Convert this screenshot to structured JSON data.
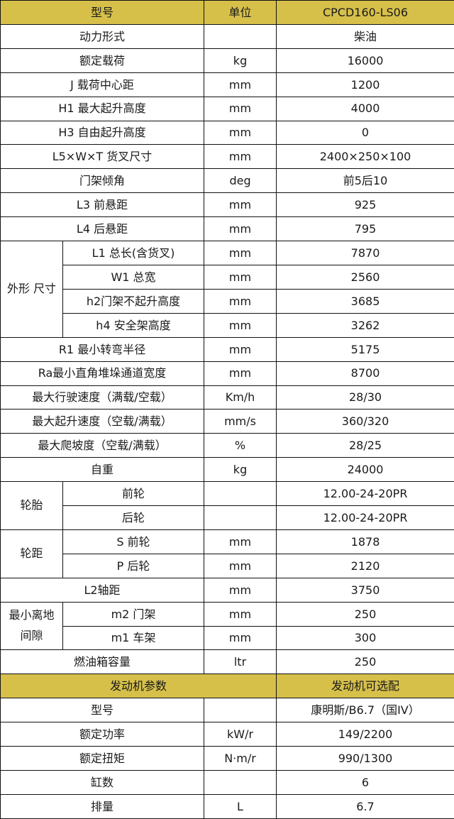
{
  "header": {
    "model_label": "型号",
    "unit_label": "单位",
    "model_value": "CPCD160-LS06"
  },
  "specs": [
    {
      "label": "动力形式",
      "unit": "",
      "value": "柴油"
    },
    {
      "label": "额定载荷",
      "unit": "kg",
      "value": "16000"
    },
    {
      "label": "J 载荷中心距",
      "unit": "mm",
      "value": "1200"
    },
    {
      "label": "H1 最大起升高度",
      "unit": "mm",
      "value": "4000"
    },
    {
      "label": "H3 自由起升高度",
      "unit": "mm",
      "value": "0"
    },
    {
      "label": "L5×W×T 货叉尺寸",
      "unit": "mm",
      "value": "2400×250×100"
    },
    {
      "label": "门架倾角",
      "unit": "deg",
      "value": "前5后10"
    },
    {
      "label": "L3 前悬距",
      "unit": "mm",
      "value": "925"
    },
    {
      "label": "L4 后悬距",
      "unit": "mm",
      "value": "795"
    },
    {
      "group": "外形 尺寸",
      "items": [
        {
          "label": "L1 总长(含货叉)",
          "unit": "mm",
          "value": "7870"
        },
        {
          "label": "W1 总宽",
          "unit": "mm",
          "value": "2560"
        },
        {
          "label": "h2门架不起升高度",
          "unit": "mm",
          "value": "3685"
        },
        {
          "label": "h4 安全架高度",
          "unit": "mm",
          "value": "3262"
        }
      ]
    },
    {
      "label": "R1 最小转弯半径",
      "unit": "mm",
      "value": "5175"
    },
    {
      "label": "Ra最小直角堆垛通道宽度",
      "unit": "mm",
      "value": "8700"
    },
    {
      "label": "最大行驶速度（满载/空载）",
      "unit": "Km/h",
      "value": "28/30"
    },
    {
      "label": "最大起升速度（空载/满载）",
      "unit": "mm/s",
      "value": "360/320"
    },
    {
      "label": "最大爬坡度（空载/满载）",
      "unit": "%",
      "value": "28/25"
    },
    {
      "label": "自重",
      "unit": "kg",
      "value": "24000"
    },
    {
      "group": "轮胎",
      "items": [
        {
          "label": "前轮",
          "unit": "",
          "value": "12.00-24-20PR"
        },
        {
          "label": "后轮",
          "unit": "",
          "value": "12.00-24-20PR"
        }
      ]
    },
    {
      "group": "轮距",
      "items": [
        {
          "label": "S 前轮",
          "unit": "mm",
          "value": "1878"
        },
        {
          "label": "P 后轮",
          "unit": "mm",
          "value": "2120"
        }
      ]
    },
    {
      "label": "L2轴距",
      "unit": "mm",
      "value": "3750"
    },
    {
      "group": "最小离地\n间隙",
      "items": [
        {
          "label": "m2 门架",
          "unit": "mm",
          "value": "250"
        },
        {
          "label": "m1 车架",
          "unit": "mm",
          "value": "300"
        }
      ]
    },
    {
      "label": "燃油箱容量",
      "unit": "ltr",
      "value": "250"
    }
  ],
  "engine_header": {
    "label": "发动机参数",
    "value": "发动机可选配"
  },
  "engine": [
    {
      "label": "型号",
      "unit": "",
      "value": "康明斯/B6.7（国IV）"
    },
    {
      "label": "额定功率",
      "unit": "kW/r",
      "value": "149/2200"
    },
    {
      "label": "额定扭矩",
      "unit": "N·m/r",
      "value": "990/1300"
    },
    {
      "label": "缸数",
      "unit": "",
      "value": "6"
    },
    {
      "label": "排量",
      "unit": "L",
      "value": "6.7"
    }
  ],
  "colors": {
    "header_bg": "#d6c04a",
    "border": "#111111"
  }
}
